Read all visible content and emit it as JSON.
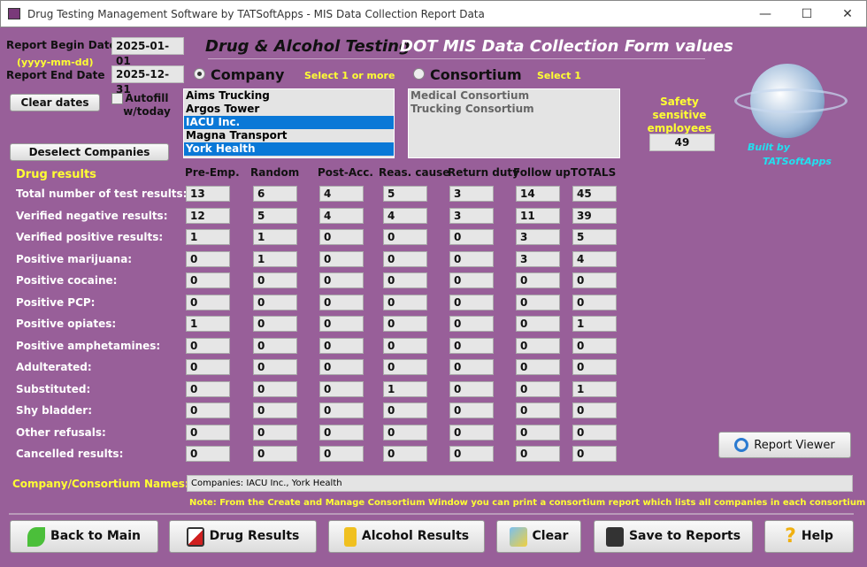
{
  "window": {
    "title": "Drug Testing Management Software by TATSoftApps - MIS Data Collection Report Data"
  },
  "header": {
    "title_left": "Drug & Alcohol Testing",
    "title_right": "DOT MIS Data Collection Form values"
  },
  "dates": {
    "begin_label": "Report Begin Date",
    "begin_value": "2025-01-01",
    "format_hint": "(yyyy-mm-dd)",
    "end_label": "Report End Date",
    "end_value": "2025-12-31",
    "clear_label": "Clear dates",
    "autofill_label": "Autofill w/today",
    "autofill_checked": false
  },
  "company": {
    "label": "Company",
    "hint": "Select 1 or more",
    "selected": true,
    "items": [
      {
        "name": "Aims Trucking",
        "selected": false
      },
      {
        "name": "Argos Tower",
        "selected": false
      },
      {
        "name": "IACU Inc.",
        "selected": true
      },
      {
        "name": "Magna Transport",
        "selected": false
      },
      {
        "name": "York Health",
        "selected": true
      }
    ],
    "deselect_label": "Deselect Companies"
  },
  "consortium": {
    "label": "Consortium",
    "hint": "Select 1",
    "selected": false,
    "items": [
      "Medical Consortium",
      "Trucking Consortium"
    ]
  },
  "safety": {
    "label": "Safety sensitive employees",
    "value": "49"
  },
  "logo": {
    "text1": "Built by",
    "text2": "TATSoftApps"
  },
  "drug": {
    "section_label": "Drug results",
    "columns": [
      "Pre-Emp.",
      "Random",
      "Post-Acc.",
      "Reas. cause",
      "Return duty",
      "Follow up",
      "TOTALS"
    ],
    "rows": [
      {
        "label": "Total number of test results:",
        "values": [
          "13",
          "6",
          "4",
          "5",
          "3",
          "14",
          "45"
        ]
      },
      {
        "label": "Verified negative results:",
        "values": [
          "12",
          "5",
          "4",
          "4",
          "3",
          "11",
          "39"
        ]
      },
      {
        "label": "Verified positive results:",
        "values": [
          "1",
          "1",
          "0",
          "0",
          "0",
          "3",
          "5"
        ]
      },
      {
        "label": "Positive marijuana:",
        "values": [
          "0",
          "1",
          "0",
          "0",
          "0",
          "3",
          "4"
        ]
      },
      {
        "label": "Positive cocaine:",
        "values": [
          "0",
          "0",
          "0",
          "0",
          "0",
          "0",
          "0"
        ]
      },
      {
        "label": "Positive PCP:",
        "values": [
          "0",
          "0",
          "0",
          "0",
          "0",
          "0",
          "0"
        ]
      },
      {
        "label": "Positive opiates:",
        "values": [
          "1",
          "0",
          "0",
          "0",
          "0",
          "0",
          "1"
        ]
      },
      {
        "label": "Positive amphetamines:",
        "values": [
          "0",
          "0",
          "0",
          "0",
          "0",
          "0",
          "0"
        ]
      },
      {
        "label": "Adulterated:",
        "values": [
          "0",
          "0",
          "0",
          "0",
          "0",
          "0",
          "0"
        ]
      },
      {
        "label": "Substituted:",
        "values": [
          "0",
          "0",
          "0",
          "1",
          "0",
          "0",
          "1"
        ]
      },
      {
        "label": "Shy bladder:",
        "values": [
          "0",
          "0",
          "0",
          "0",
          "0",
          "0",
          "0"
        ]
      },
      {
        "label": "Other refusals:",
        "values": [
          "0",
          "0",
          "0",
          "0",
          "0",
          "0",
          "0"
        ]
      },
      {
        "label": "Cancelled results:",
        "values": [
          "0",
          "0",
          "0",
          "0",
          "0",
          "0",
          "0"
        ]
      }
    ]
  },
  "report_viewer_label": "Report Viewer",
  "names": {
    "label": "Company/Consortium Names:",
    "value": "Companies: IACU Inc., York Health",
    "note": "Note: From the Create and Manage Consortium Window you can print a consortium report which lists all companies in each consortium"
  },
  "buttons": {
    "back": "Back to Main",
    "drug": "Drug Results",
    "alcohol": "Alcohol Results",
    "clear": "Clear",
    "save": "Save to Reports",
    "help": "Help"
  }
}
